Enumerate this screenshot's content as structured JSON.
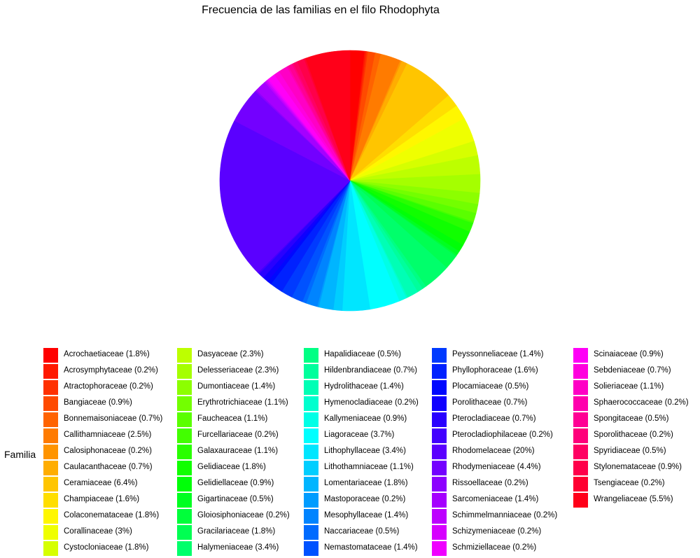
{
  "chart_data": {
    "type": "pie",
    "title": "Frecuencia de las familias en el filo Rhodophyta",
    "legend_title": "Familia",
    "legend_position": "bottom",
    "start_angle_deg": 0,
    "direction": "clockwise",
    "series": [
      {
        "name": "Acrochaetiaceae",
        "label": "Acrochaetiaceae (1.8%)",
        "value": 1.8
      },
      {
        "name": "Acrosymphytaceae",
        "label": "Acrosymphytaceae (0.2%)",
        "value": 0.2
      },
      {
        "name": "Atractophoraceae",
        "label": "Atractophoraceae (0.2%)",
        "value": 0.2
      },
      {
        "name": "Bangiaceae",
        "label": "Bangiaceae (0.9%)",
        "value": 0.9
      },
      {
        "name": "Bonnemaisoniaceae",
        "label": "Bonnemaisoniaceae (0.7%)",
        "value": 0.7
      },
      {
        "name": "Callithamniaceae",
        "label": "Callithamniaceae (2.5%)",
        "value": 2.5
      },
      {
        "name": "Calosiphonaceae",
        "label": "Calosiphonaceae (0.2%)",
        "value": 0.2
      },
      {
        "name": "Caulacanthaceae",
        "label": "Caulacanthaceae (0.7%)",
        "value": 0.7
      },
      {
        "name": "Ceramiaceae",
        "label": "Ceramiaceae (6.4%)",
        "value": 6.4
      },
      {
        "name": "Champiaceae",
        "label": "Champiaceae (1.6%)",
        "value": 1.6
      },
      {
        "name": "Colaconemataceae",
        "label": "Colaconemataceae (1.8%)",
        "value": 1.8
      },
      {
        "name": "Corallinaceae",
        "label": "Corallinaceae (3%)",
        "value": 3
      },
      {
        "name": "Cystocloniaceae",
        "label": "Cystocloniaceae (1.8%)",
        "value": 1.8
      },
      {
        "name": "Dasyaceae",
        "label": "Dasyaceae (2.3%)",
        "value": 2.3
      },
      {
        "name": "Delesseriaceae",
        "label": "Delesseriaceae (2.3%)",
        "value": 2.3
      },
      {
        "name": "Dumontiaceae",
        "label": "Dumontiaceae (1.4%)",
        "value": 1.4
      },
      {
        "name": "Erythrotrichiaceae",
        "label": "Erythrotrichiaceae (1.1%)",
        "value": 1.1
      },
      {
        "name": "Faucheacea",
        "label": "Faucheacea (1.1%)",
        "value": 1.1
      },
      {
        "name": "Furcellariaceae",
        "label": "Furcellariaceae (0.2%)",
        "value": 0.2
      },
      {
        "name": "Galaxauraceae",
        "label": "Galaxauraceae (1.1%)",
        "value": 1.1
      },
      {
        "name": "Gelidiaceae",
        "label": "Gelidiaceae (1.8%)",
        "value": 1.8
      },
      {
        "name": "Gelidiellaceae",
        "label": "Gelidiellaceae (0.9%)",
        "value": 0.9
      },
      {
        "name": "Gigartinaceae",
        "label": "Gigartinaceae (0.5%)",
        "value": 0.5
      },
      {
        "name": "Gloiosiphoniaceae",
        "label": "Gloiosiphoniaceae (0.2%)",
        "value": 0.2
      },
      {
        "name": "Gracilariaceae",
        "label": "Gracilariaceae (1.8%)",
        "value": 1.8
      },
      {
        "name": "Halymeniaceae",
        "label": "Halymeniaceae (3.4%)",
        "value": 3.4
      },
      {
        "name": "Hapalidiaceae",
        "label": "Hapalidiaceae (0.5%)",
        "value": 0.5
      },
      {
        "name": "Hildenbrandiaceae",
        "label": "Hildenbrandiaceae (0.7%)",
        "value": 0.7
      },
      {
        "name": "Hydrolithaceae",
        "label": "Hydrolithaceae (1.4%)",
        "value": 1.4
      },
      {
        "name": "Hymenocladiaceae",
        "label": "Hymenocladiaceae (0.2%)",
        "value": 0.2
      },
      {
        "name": "Kallymeniaceae",
        "label": "Kallymeniaceae (0.9%)",
        "value": 0.9
      },
      {
        "name": "Liagoraceae",
        "label": "Liagoraceae (3.7%)",
        "value": 3.7
      },
      {
        "name": "Lithophyllaceae",
        "label": "Lithophyllaceae (3.4%)",
        "value": 3.4
      },
      {
        "name": "Lithothamniaceae",
        "label": "Lithothamniaceae (1.1%)",
        "value": 1.1
      },
      {
        "name": "Lomentariaceae",
        "label": "Lomentariaceae (1.8%)",
        "value": 1.8
      },
      {
        "name": "Mastoporaceae",
        "label": "Mastoporaceae (0.2%)",
        "value": 0.2
      },
      {
        "name": "Mesophyllaceae",
        "label": "Mesophyllaceae (1.4%)",
        "value": 1.4
      },
      {
        "name": "Naccariaceae",
        "label": "Naccariaceae (0.5%)",
        "value": 0.5
      },
      {
        "name": "Nemastomataceae",
        "label": "Nemastomataceae (1.4%)",
        "value": 1.4
      },
      {
        "name": "Peyssonneliaceae",
        "label": "Peyssonneliaceae (1.4%)",
        "value": 1.4
      },
      {
        "name": "Phyllophoraceae",
        "label": "Phyllophoraceae (1.6%)",
        "value": 1.6
      },
      {
        "name": "Plocamiaceae",
        "label": "Plocamiaceae (0.5%)",
        "value": 0.5
      },
      {
        "name": "Porolithaceae",
        "label": "Porolithaceae (0.7%)",
        "value": 0.7
      },
      {
        "name": "Pterocladiaceae",
        "label": "Pterocladiaceae (0.7%)",
        "value": 0.7
      },
      {
        "name": "Pterocladiophilaceae",
        "label": "Pterocladiophilaceae (0.2%)",
        "value": 0.2
      },
      {
        "name": "Rhodomelaceae",
        "label": "Rhodomelaceae (20%)",
        "value": 20
      },
      {
        "name": "Rhodymeniaceae",
        "label": "Rhodymeniaceae (4.4%)",
        "value": 4.4
      },
      {
        "name": "Rissoellaceae",
        "label": "Rissoellaceae (0.2%)",
        "value": 0.2
      },
      {
        "name": "Sarcomeniaceae",
        "label": "Sarcomeniaceae (1.4%)",
        "value": 1.4
      },
      {
        "name": "Schimmelmanniaceae",
        "label": "Schimmelmanniaceae (0.2%)",
        "value": 0.2
      },
      {
        "name": "Schizymeniaceae",
        "label": "Schizymeniaceae (0.2%)",
        "value": 0.2
      },
      {
        "name": "Schmiziellaceae",
        "label": "Schmiziellaceae (0.2%)",
        "value": 0.2
      },
      {
        "name": "Scinaiaceae",
        "label": "Scinaiaceae (0.9%)",
        "value": 0.9
      },
      {
        "name": "Sebdeniaceae",
        "label": "Sebdeniaceae (0.7%)",
        "value": 0.7
      },
      {
        "name": "Solieriaceae",
        "label": "Solieriaceae (1.1%)",
        "value": 1.1
      },
      {
        "name": "Sphaerococcaceae",
        "label": "Sphaerococcaceae (0.2%)",
        "value": 0.2
      },
      {
        "name": "Spongitaceae",
        "label": "Spongitaceae (0.5%)",
        "value": 0.5
      },
      {
        "name": "Sporolithaceae",
        "label": "Sporolithaceae (0.2%)",
        "value": 0.2
      },
      {
        "name": "Spyridiaceae",
        "label": "Spyridiaceae (0.5%)",
        "value": 0.5
      },
      {
        "name": "Stylonemataceae",
        "label": "Stylonemataceae (0.9%)",
        "value": 0.9
      },
      {
        "name": "Tsengiaceae",
        "label": "Tsengiaceae (0.2%)",
        "value": 0.2
      },
      {
        "name": "Wrangeliaceae",
        "label": "Wrangeliaceae (5.5%)",
        "value": 5.5
      }
    ],
    "palette": "rainbow"
  }
}
